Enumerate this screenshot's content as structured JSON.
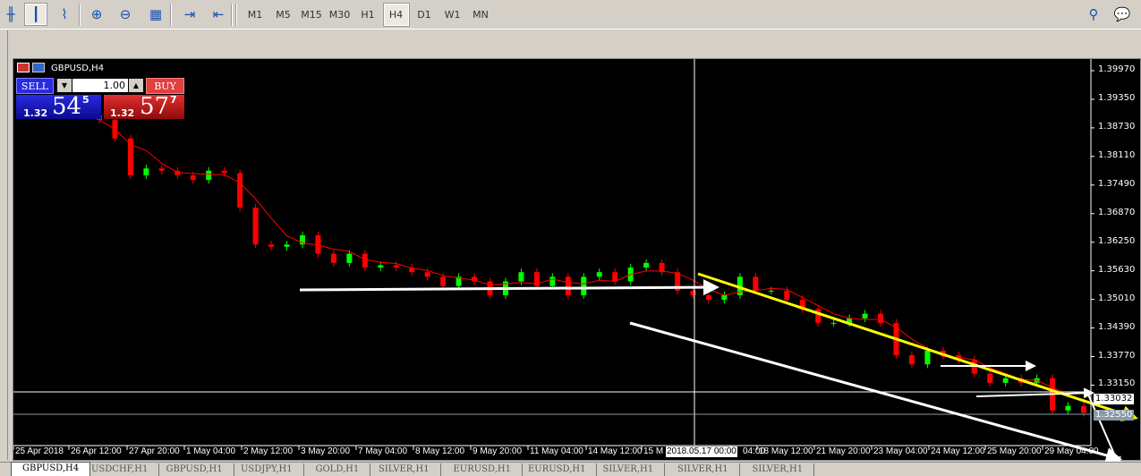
{
  "toolbar": {
    "tools": [
      {
        "icon": "bar-chart-icon",
        "glyph": "╫"
      },
      {
        "icon": "candlestick-icon",
        "glyph": "┃",
        "selected": true
      },
      {
        "icon": "line-chart-icon",
        "glyph": "⌇"
      },
      {
        "icon": "zoom-in-icon",
        "glyph": "⊕"
      },
      {
        "icon": "zoom-out-icon",
        "glyph": "⊖"
      },
      {
        "icon": "tile-windows-icon",
        "glyph": "▦"
      },
      {
        "icon": "chart-shift-icon",
        "glyph": "⇥"
      },
      {
        "icon": "auto-scroll-icon",
        "glyph": "⇤"
      }
    ],
    "timeframes": [
      "M1",
      "M5",
      "M15",
      "M30",
      "H1",
      "H4",
      "D1",
      "W1",
      "MN"
    ],
    "selected_timeframe": "H4",
    "right_icons": [
      "search-icon",
      "chat-icon"
    ]
  },
  "chart": {
    "title": "GBPUSD,H4",
    "trade_panel": {
      "sell_label": "SELL",
      "buy_label": "BUY",
      "volume": "1.00",
      "sell_prefix": "1.32",
      "sell_big": "54",
      "sell_sup": "5",
      "buy_prefix": "1.32",
      "buy_big": "57",
      "buy_sup": "7"
    },
    "price_labels": [
      "1.39970",
      "1.39350",
      "1.38730",
      "1.38110",
      "1.37490",
      "1.36870",
      "1.36250",
      "1.35630",
      "1.35010",
      "1.34390",
      "1.33770",
      "1.33150"
    ],
    "crosshair_price": "1.33032",
    "bid_price": "1.32550",
    "time_labels": [
      "25 Apr 2018",
      "26 Apr 12:00",
      "27 Apr 20:00",
      "1 May 04:00",
      "2 May 12:00",
      "3 May 20:00",
      "7 May 04:00",
      "8 May 12:00",
      "9 May 20:00",
      "11 May 04:00",
      "14 May 12:00",
      "15 M",
      "04:00",
      "18 May 12:00",
      "21 May 20:00",
      "23 May 04:00",
      "24 May 12:00",
      "25 May 20:00",
      "29 May 04:00"
    ],
    "crosshair_time": "2018.05.17 00:00",
    "colors": {
      "bull": "#00ff00",
      "bear": "#ff0000",
      "ma": "#ff0000",
      "trend_yellow": "#ffff00",
      "lines": "#ffffff",
      "sell": "#1c1cc8",
      "buy": "#c81c1c"
    }
  },
  "chart_data": {
    "type": "candlestick",
    "symbol": "GBPUSD",
    "timeframe": "H4",
    "ylim": [
      1.323,
      1.401
    ],
    "closes": [
      1.389,
      1.385,
      1.377,
      1.3785,
      1.378,
      1.377,
      1.376,
      1.378,
      1.3775,
      1.37,
      1.362,
      1.3615,
      1.362,
      1.364,
      1.36,
      1.358,
      1.36,
      1.357,
      1.3575,
      1.357,
      1.356,
      1.355,
      1.353,
      1.355,
      1.354,
      1.351,
      1.354,
      1.356,
      1.353,
      1.355,
      1.351,
      1.355,
      1.356,
      1.354,
      1.357,
      1.358,
      1.356,
      1.352,
      1.351,
      1.35,
      1.351,
      1.355,
      1.352,
      1.352,
      1.35,
      1.348,
      1.345,
      1.345,
      1.346,
      1.347,
      1.345,
      1.338,
      1.336,
      1.339,
      1.338,
      1.337,
      1.334,
      1.332,
      1.333,
      1.332,
      1.333,
      1.326,
      1.327,
      1.3255
    ]
  },
  "tabs": [
    "GBPUSD,H4",
    "USDCHF,H1",
    "GBPUSD,H1",
    "USDJPY,H1",
    "GOLD,H1",
    "SILVER,H1",
    "EURUSD,H1",
    "EURUSD,H1",
    "SILVER,H1",
    "SILVER,H1",
    "SILVER,H1"
  ],
  "active_tab": "GBPUSD,H4"
}
